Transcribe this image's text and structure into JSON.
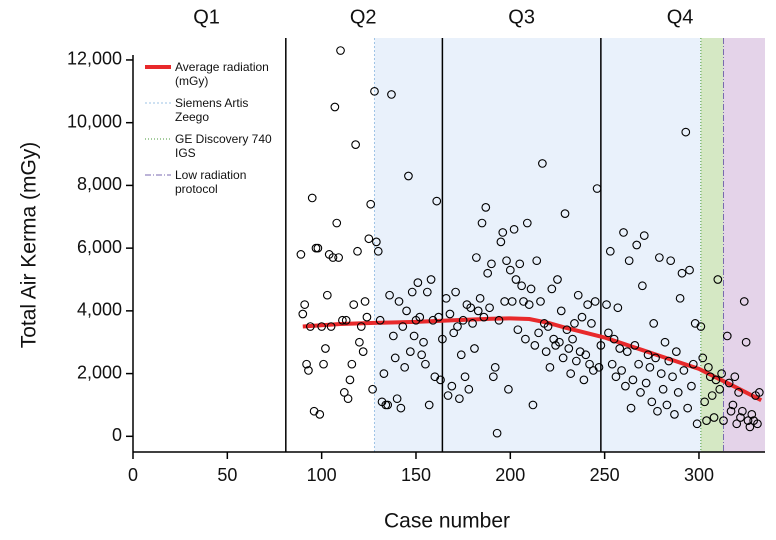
{
  "chart_data": {
    "type": "scatter",
    "xlabel": "Case number",
    "ylabel": "Total Air Kerma (mGy)",
    "xlim": [
      0,
      335
    ],
    "ylim": [
      -500,
      12700
    ],
    "xticks": [
      0,
      50,
      100,
      150,
      200,
      250,
      300
    ],
    "yticks": [
      0,
      {
        "value": 2000,
        "label": "2,000"
      },
      {
        "value": 4000,
        "label": "4,000"
      },
      {
        "value": 6000,
        "label": "6,000"
      },
      {
        "value": 8000,
        "label": "8,000"
      },
      {
        "value": 10000,
        "label": "10,000"
      },
      {
        "value": 12000,
        "label": "12,000"
      }
    ],
    "quarters": [
      {
        "label": "Q1",
        "x": 39
      },
      {
        "label": "Q2",
        "x": 122
      },
      {
        "label": "Q3",
        "x": 206
      },
      {
        "label": "Q4",
        "x": 290
      }
    ],
    "quarter_lines": [
      81,
      164,
      248
    ],
    "regions": [
      {
        "name": "Siemens Artis Zeego",
        "xlim": [
          128,
          301
        ],
        "color": "#e9f1fb",
        "edge": "#9ec3e6",
        "dash": "2,2"
      },
      {
        "name": "GE Discovery 740 IGS",
        "xlim": [
          301,
          313
        ],
        "color": "#d5e8c4",
        "edge": "#4a9a3a",
        "dash": "1,2"
      },
      {
        "name": "Low radiation protocol",
        "xlim": [
          313,
          335
        ],
        "color": "#e4d3e9",
        "edge": "#7a6ab0",
        "dash": "6,2,1,2"
      }
    ],
    "series": [
      {
        "name": "Average radiation (mGy)",
        "mode": "line",
        "color": "#e8292b",
        "x": [
          90,
          110,
          130,
          150,
          170,
          190,
          200,
          210,
          220,
          230,
          240,
          250,
          260,
          270,
          280,
          290,
          300,
          310,
          320,
          333
        ],
        "values": [
          3500,
          3580,
          3620,
          3650,
          3700,
          3750,
          3760,
          3740,
          3620,
          3450,
          3300,
          3150,
          2950,
          2750,
          2550,
          2350,
          2150,
          1850,
          1550,
          1150
        ]
      },
      {
        "mode": "scatter",
        "color": "#000000",
        "x": [
          89,
          90,
          91,
          92,
          93,
          94,
          95,
          96,
          97,
          98,
          99,
          100,
          101,
          102,
          103,
          104,
          105,
          106,
          107,
          108,
          109,
          110,
          111,
          112,
          113,
          114,
          115,
          116,
          117,
          118,
          119,
          120,
          121,
          122,
          123,
          124,
          125,
          126,
          127,
          128,
          129,
          130,
          131,
          132,
          133,
          134,
          135,
          136,
          137,
          138,
          139,
          140,
          141,
          142,
          143,
          144,
          145,
          146,
          147,
          148,
          149,
          150,
          151,
          152,
          153,
          154,
          155,
          156,
          157,
          158,
          159,
          160,
          161,
          162,
          163,
          164,
          166,
          167,
          168,
          169,
          170,
          171,
          172,
          173,
          174,
          175,
          176,
          177,
          178,
          179,
          180,
          181,
          182,
          183,
          184,
          185,
          186,
          187,
          188,
          189,
          190,
          191,
          192,
          193,
          194,
          195,
          196,
          197,
          198,
          199,
          200,
          201,
          202,
          203,
          204,
          205,
          206,
          207,
          208,
          209,
          210,
          211,
          212,
          213,
          214,
          215,
          216,
          217,
          218,
          219,
          220,
          221,
          222,
          223,
          224,
          225,
          226,
          227,
          228,
          229,
          230,
          231,
          232,
          233,
          234,
          235,
          236,
          237,
          238,
          239,
          240,
          241,
          242,
          243,
          244,
          245,
          246,
          247,
          248,
          251,
          252,
          253,
          254,
          255,
          256,
          257,
          258,
          259,
          260,
          261,
          262,
          263,
          264,
          265,
          266,
          267,
          268,
          269,
          270,
          271,
          272,
          273,
          274,
          275,
          276,
          277,
          278,
          279,
          280,
          281,
          282,
          283,
          284,
          285,
          286,
          287,
          288,
          289,
          290,
          291,
          292,
          293,
          294,
          295,
          296,
          297,
          298,
          299,
          301,
          302,
          303,
          304,
          305,
          306,
          307,
          308,
          309,
          310,
          311,
          312,
          313,
          315,
          316,
          317,
          318,
          319,
          320,
          321,
          322,
          323,
          324,
          325,
          326,
          327,
          328,
          329,
          330,
          331,
          332
        ],
        "values": [
          5800,
          3900,
          4200,
          2300,
          2100,
          3500,
          7600,
          800,
          6000,
          6000,
          700,
          3500,
          2300,
          2800,
          4500,
          5800,
          3500,
          5700,
          10500,
          6800,
          5700,
          12300,
          3700,
          1400,
          3700,
          1200,
          1800,
          2300,
          4200,
          9300,
          5900,
          3000,
          3500,
          2700,
          4300,
          3800,
          6300,
          7400,
          1500,
          11000,
          6200,
          5900,
          3700,
          1100,
          2000,
          1000,
          1000,
          4500,
          10900,
          3200,
          2500,
          1200,
          4300,
          900,
          3500,
          2200,
          4000,
          8300,
          2700,
          4600,
          3200,
          3700,
          4900,
          3800,
          2600,
          3000,
          2300,
          4600,
          1000,
          5000,
          3700,
          1900,
          7500,
          3800,
          1800,
          3100,
          4400,
          1300,
          3900,
          1600,
          3300,
          4600,
          3500,
          1200,
          2600,
          3700,
          1900,
          4200,
          1500,
          4100,
          3600,
          2800,
          5700,
          4000,
          4400,
          6800,
          3800,
          7300,
          5200,
          4100,
          5500,
          1900,
          2200,
          100,
          3700,
          6200,
          6500,
          4300,
          5600,
          1500,
          5300,
          4300,
          6600,
          5000,
          3400,
          5500,
          4800,
          4300,
          3100,
          6800,
          4200,
          4700,
          1000,
          2900,
          5600,
          3300,
          4300,
          8700,
          3600,
          2700,
          3500,
          2200,
          4700,
          3100,
          2900,
          5000,
          3000,
          4000,
          2500,
          7100,
          3400,
          2800,
          2000,
          3100,
          3600,
          2400,
          4500,
          2700,
          3800,
          1800,
          2600,
          4200,
          2300,
          3600,
          2100,
          4300,
          7900,
          2200,
          2900,
          4200,
          3300,
          5900,
          2300,
          3100,
          1900,
          4100,
          2800,
          2100,
          6500,
          1600,
          2700,
          5600,
          900,
          1800,
          2900,
          6100,
          2300,
          1400,
          4800,
          6400,
          1700,
          2600,
          2200,
          1100,
          3600,
          2500,
          800,
          5700,
          2000,
          1500,
          3000,
          1000,
          2400,
          5600,
          1900,
          700,
          2700,
          1400,
          4400,
          5200,
          2100,
          9700,
          900,
          5300,
          1600,
          2300,
          3600,
          400,
          3500,
          2500,
          1100,
          500,
          2200,
          1900,
          1300,
          600,
          1800,
          5000,
          1500,
          2000,
          500,
          3200,
          1700,
          800,
          1000,
          1900,
          400,
          1400,
          600,
          800,
          4300,
          3000,
          500,
          300,
          700,
          500,
          1300,
          400,
          1400
        ]
      }
    ]
  }
}
